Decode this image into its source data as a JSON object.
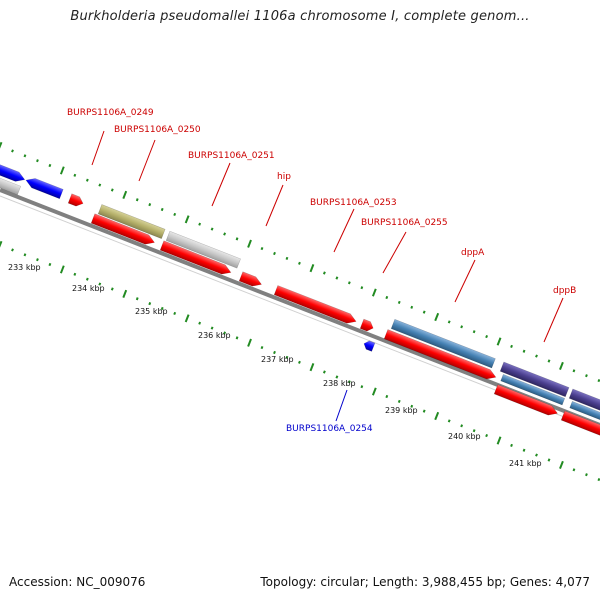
{
  "title": "Burkholderia pseudomallei 1106a chromosome I, complete genom...",
  "footer": {
    "accession": "Accession: NC_009076",
    "summary": "Topology: circular; Length: 3,988,455 bp; Genes: 4,077"
  },
  "kbp_labels": [
    "233 kbp",
    "234 kbp",
    "235 kbp",
    "236 kbp",
    "237 kbp",
    "238 kbp",
    "239 kbp",
    "240 kbp",
    "241 kbp"
  ],
  "gene_labels": [
    {
      "text": "BURPS1106A_0249",
      "color": "#cc0000"
    },
    {
      "text": "BURPS1106A_0250",
      "color": "#cc0000"
    },
    {
      "text": "BURPS1106A_0251",
      "color": "#cc0000"
    },
    {
      "text": "hip",
      "color": "#cc0000"
    },
    {
      "text": "BURPS1106A_0253",
      "color": "#cc0000"
    },
    {
      "text": "BURPS1106A_0255",
      "color": "#cc0000"
    },
    {
      "text": "dppA",
      "color": "#cc0000"
    },
    {
      "text": "dppB",
      "color": "#cc0000"
    },
    {
      "text": "BURPS1106A_0254",
      "color": "#0000cc"
    }
  ],
  "colors": {
    "forward_gene": "#ff0000",
    "reverse_gene": "#0000ff",
    "olive_feature": "#b5b06a",
    "grey_feature": "#c8c8c8",
    "steelblue_feature": "#4682b4",
    "purple_feature": "#4b3f8f",
    "backbone": "#808080",
    "tick": "#228b22"
  }
}
